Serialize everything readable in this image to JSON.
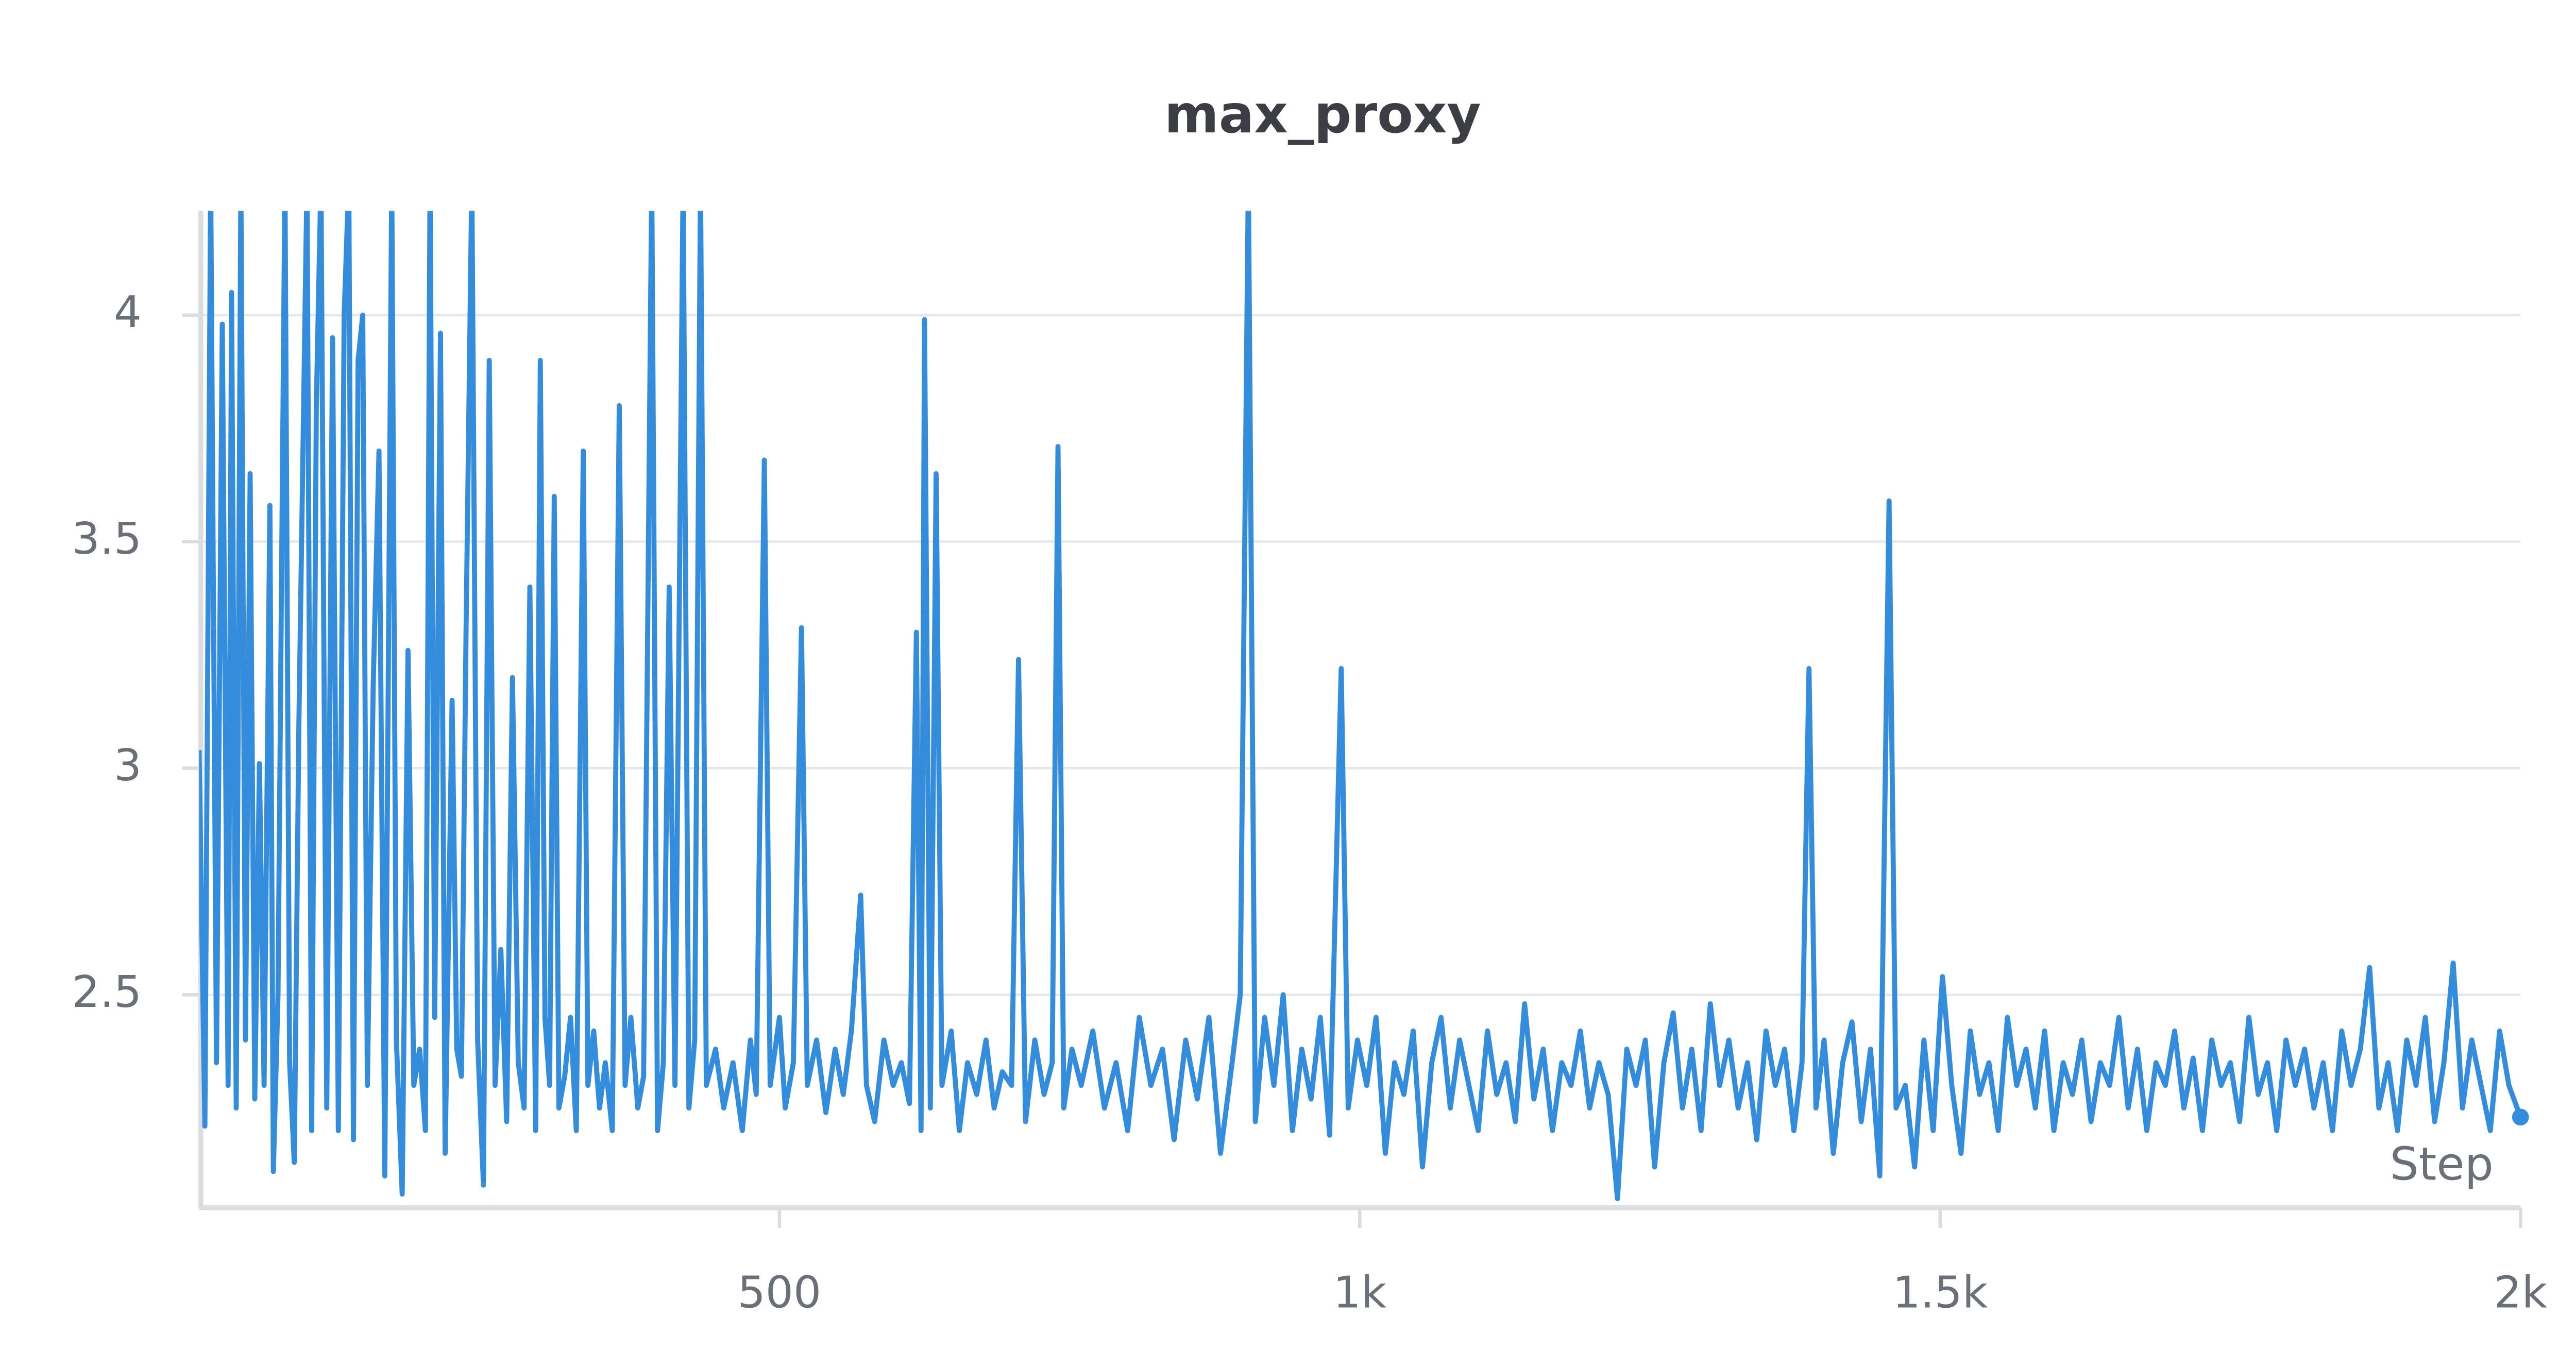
{
  "chart_data": {
    "type": "line",
    "title": "max_proxy",
    "x_label": "Step",
    "color": "#348ddc",
    "grid": true,
    "xlim": [
      0,
      2000
    ],
    "ylim": [
      2.03,
      4.23
    ],
    "xticks": [
      500,
      {
        "value": 1000,
        "label": "1k"
      },
      {
        "value": 1500,
        "label": "1.5k"
      },
      {
        "value": 2000,
        "label": "2k"
      }
    ],
    "yticks": [
      2.5,
      3,
      3.5,
      4
    ],
    "x": [
      0,
      5,
      10,
      15,
      20,
      25,
      28,
      32,
      36,
      40,
      44,
      48,
      52,
      56,
      61,
      64,
      68,
      74,
      78,
      82,
      86,
      93,
      97,
      101,
      105,
      110,
      115,
      120,
      125,
      129,
      133,
      137,
      141,
      145,
      150,
      155,
      160,
      166,
      170,
      175,
      180,
      185,
      190,
      195,
      199,
      203,
      208,
      212,
      218,
      222,
      226,
      230,
      235,
      240,
      245,
      250,
      255,
      260,
      265,
      270,
      275,
      280,
      285,
      290,
      294,
      298,
      302,
      306,
      310,
      315,
      320,
      325,
      331,
      335,
      340,
      345,
      350,
      356,
      362,
      367,
      372,
      378,
      383,
      390,
      395,
      400,
      405,
      410,
      417,
      422,
      427,
      432,
      437,
      445,
      452,
      460,
      468,
      475,
      480,
      487,
      492,
      500,
      505,
      512,
      519,
      524,
      532,
      540,
      548,
      555,
      562,
      570,
      575,
      582,
      590,
      598,
      605,
      612,
      618,
      622,
      625,
      630,
      635,
      640,
      648,
      655,
      662,
      670,
      678,
      685,
      692,
      700,
      706,
      712,
      720,
      728,
      735,
      740,
      745,
      752,
      760,
      770,
      780,
      790,
      800,
      810,
      820,
      830,
      840,
      850,
      860,
      870,
      880,
      890,
      897,
      904,
      910,
      918,
      926,
      934,
      942,
      950,
      958,
      966,
      974,
      984,
      990,
      998,
      1006,
      1014,
      1022,
      1030,
      1038,
      1046,
      1054,
      1062,
      1070,
      1078,
      1086,
      1094,
      1102,
      1110,
      1118,
      1126,
      1134,
      1142,
      1150,
      1158,
      1166,
      1174,
      1182,
      1190,
      1198,
      1206,
      1214,
      1222,
      1230,
      1238,
      1246,
      1254,
      1262,
      1270,
      1278,
      1286,
      1294,
      1302,
      1310,
      1318,
      1326,
      1334,
      1342,
      1350,
      1358,
      1366,
      1374,
      1381,
      1387,
      1393,
      1400,
      1408,
      1416,
      1424,
      1432,
      1440,
      1448,
      1456,
      1462,
      1470,
      1478,
      1486,
      1494,
      1502,
      1510,
      1518,
      1526,
      1534,
      1542,
      1550,
      1558,
      1566,
      1574,
      1582,
      1590,
      1598,
      1606,
      1614,
      1622,
      1630,
      1638,
      1646,
      1654,
      1662,
      1670,
      1678,
      1686,
      1694,
      1702,
      1710,
      1718,
      1726,
      1734,
      1742,
      1750,
      1758,
      1766,
      1774,
      1782,
      1790,
      1798,
      1806,
      1814,
      1822,
      1830,
      1838,
      1846,
      1854,
      1862,
      1870,
      1878,
      1886,
      1894,
      1902,
      1910,
      1918,
      1926,
      1934,
      1942,
      1950,
      1958,
      1966,
      1974,
      1982,
      1990,
      2000
    ],
    "values": [
      3.04,
      2.21,
      4.3,
      2.35,
      3.98,
      2.3,
      4.05,
      2.25,
      4.3,
      2.4,
      3.65,
      2.27,
      3.01,
      2.3,
      3.58,
      2.11,
      2.5,
      4.3,
      2.35,
      2.13,
      3.1,
      4.3,
      2.2,
      3.8,
      4.3,
      2.25,
      3.95,
      2.2,
      4.0,
      4.3,
      2.18,
      3.9,
      4.0,
      2.3,
      3.18,
      3.7,
      2.1,
      4.3,
      2.4,
      2.06,
      3.26,
      2.3,
      2.38,
      2.2,
      4.3,
      2.45,
      3.96,
      2.15,
      3.15,
      2.38,
      2.32,
      3.3,
      4.3,
      2.4,
      2.08,
      3.9,
      2.3,
      2.6,
      2.22,
      3.2,
      2.35,
      2.25,
      3.4,
      2.2,
      3.9,
      2.45,
      2.3,
      3.6,
      2.25,
      2.32,
      2.45,
      2.2,
      3.7,
      2.3,
      2.42,
      2.25,
      2.35,
      2.2,
      3.8,
      2.3,
      2.45,
      2.25,
      2.32,
      4.3,
      2.2,
      2.35,
      3.4,
      2.3,
      4.3,
      2.25,
      2.4,
      4.3,
      2.3,
      2.38,
      2.25,
      2.35,
      2.2,
      2.4,
      2.28,
      3.68,
      2.3,
      2.45,
      2.25,
      2.35,
      3.31,
      2.3,
      2.4,
      2.24,
      2.38,
      2.28,
      2.42,
      2.72,
      2.3,
      2.22,
      2.4,
      2.3,
      2.35,
      2.26,
      3.3,
      2.2,
      3.99,
      2.25,
      3.65,
      2.3,
      2.42,
      2.2,
      2.35,
      2.28,
      2.4,
      2.25,
      2.33,
      2.3,
      3.24,
      2.22,
      2.4,
      2.28,
      2.35,
      3.71,
      2.25,
      2.38,
      2.3,
      2.42,
      2.25,
      2.35,
      2.2,
      2.45,
      2.3,
      2.38,
      2.18,
      2.4,
      2.27,
      2.45,
      2.15,
      2.35,
      2.5,
      4.3,
      2.22,
      2.45,
      2.3,
      2.5,
      2.2,
      2.38,
      2.27,
      2.45,
      2.19,
      3.22,
      2.25,
      2.4,
      2.3,
      2.45,
      2.15,
      2.35,
      2.28,
      2.42,
      2.12,
      2.35,
      2.45,
      2.25,
      2.4,
      2.3,
      2.2,
      2.42,
      2.28,
      2.35,
      2.22,
      2.48,
      2.27,
      2.38,
      2.2,
      2.35,
      2.3,
      2.42,
      2.25,
      2.35,
      2.28,
      2.05,
      2.38,
      2.3,
      2.4,
      2.12,
      2.35,
      2.46,
      2.25,
      2.38,
      2.2,
      2.48,
      2.3,
      2.4,
      2.25,
      2.35,
      2.18,
      2.42,
      2.3,
      2.38,
      2.2,
      2.35,
      3.22,
      2.25,
      2.4,
      2.15,
      2.35,
      2.44,
      2.22,
      2.38,
      2.1,
      3.59,
      2.25,
      2.3,
      2.12,
      2.4,
      2.2,
      2.54,
      2.3,
      2.15,
      2.42,
      2.28,
      2.35,
      2.2,
      2.45,
      2.3,
      2.38,
      2.25,
      2.42,
      2.2,
      2.35,
      2.28,
      2.4,
      2.22,
      2.35,
      2.3,
      2.45,
      2.25,
      2.38,
      2.2,
      2.35,
      2.3,
      2.42,
      2.25,
      2.36,
      2.2,
      2.4,
      2.3,
      2.35,
      2.22,
      2.45,
      2.28,
      2.35,
      2.2,
      2.4,
      2.3,
      2.38,
      2.25,
      2.35,
      2.2,
      2.42,
      2.3,
      2.38,
      2.56,
      2.25,
      2.35,
      2.2,
      2.4,
      2.3,
      2.45,
      2.22,
      2.35,
      2.57,
      2.25,
      2.4,
      2.3,
      2.2,
      2.42,
      2.3,
      2.23
    ]
  }
}
